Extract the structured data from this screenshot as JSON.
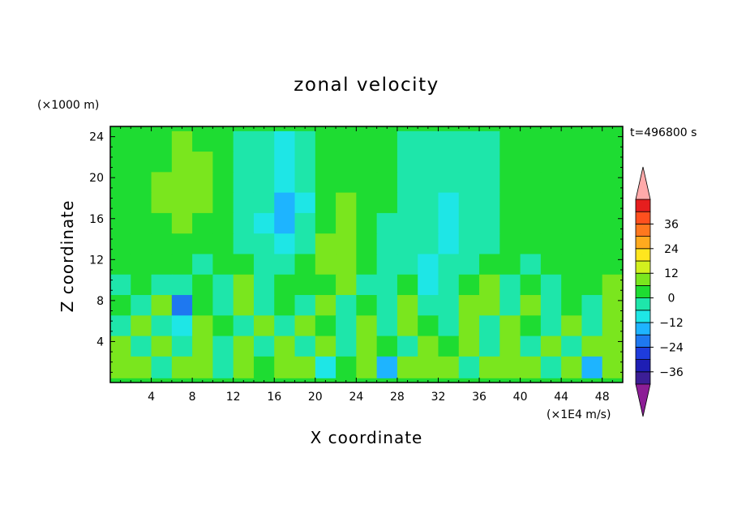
{
  "chart_data": {
    "type": "heatmap",
    "title": "zonal velocity",
    "xlabel": "X coordinate",
    "ylabel": "Z coordinate",
    "x_unit": "(×1E4 m/s)",
    "y_unit": "(×1000 m)",
    "time_label": "t=496800 s",
    "xlim": [
      0,
      50
    ],
    "ylim": [
      0,
      25
    ],
    "x_ticks": [
      4,
      8,
      12,
      16,
      20,
      24,
      28,
      32,
      36,
      40,
      44,
      48
    ],
    "y_ticks": [
      4,
      8,
      12,
      16,
      20,
      24
    ],
    "colorbar": {
      "levels": [
        -42,
        -36,
        -30,
        -24,
        -18,
        -12,
        -6,
        0,
        6,
        12,
        18,
        24,
        30,
        36,
        42
      ],
      "labels": [
        36,
        24,
        12,
        0,
        -12,
        -24,
        -36
      ],
      "colors": [
        "#3c1e96",
        "#1e1eb4",
        "#1e3cdc",
        "#1e78f0",
        "#1eb4ff",
        "#1ee6e6",
        "#1ee6aa",
        "#1edc32",
        "#7ae61e",
        "#d2f01e",
        "#ffe61e",
        "#ffaa1e",
        "#ff781e",
        "#ff501e",
        "#e61e1e"
      ],
      "under_color": "#8c1e96",
      "over_color": "#ffaaaa"
    },
    "field": {
      "x_centers": [
        1,
        3,
        5,
        7,
        9,
        11,
        13,
        15,
        17,
        19,
        21,
        23,
        25,
        27,
        29,
        31,
        33,
        35,
        37,
        39,
        41,
        43,
        45,
        47,
        49
      ],
      "z_centers": [
        23.5,
        21.5,
        19.5,
        17.5,
        15.5,
        13.5,
        11.5,
        9.5,
        7.5,
        5.5,
        3.5,
        1.5
      ],
      "values": [
        [
          2,
          2,
          4,
          6,
          5,
          2,
          -2,
          -6,
          -8,
          -4,
          2,
          4,
          2,
          0,
          -2,
          -4,
          -6,
          -4,
          -2,
          2,
          4,
          4,
          2,
          2,
          4
        ],
        [
          2,
          2,
          4,
          6,
          6,
          2,
          -2,
          -6,
          -8,
          -4,
          2,
          4,
          2,
          0,
          -2,
          -4,
          -6,
          -4,
          -2,
          2,
          4,
          4,
          2,
          2,
          4
        ],
        [
          2,
          2,
          6,
          6,
          6,
          2,
          -2,
          -6,
          -10,
          -6,
          2,
          4,
          2,
          0,
          -2,
          -6,
          -6,
          -4,
          -2,
          2,
          4,
          4,
          2,
          2,
          4
        ],
        [
          2,
          2,
          6,
          6,
          6,
          2,
          -4,
          -6,
          -14,
          -8,
          2,
          6,
          2,
          0,
          -4,
          -6,
          -8,
          -4,
          -2,
          2,
          4,
          4,
          2,
          2,
          4
        ],
        [
          0,
          2,
          4,
          6,
          4,
          0,
          -4,
          -8,
          -16,
          -6,
          4,
          6,
          2,
          -2,
          -4,
          -6,
          -8,
          -6,
          -4,
          2,
          4,
          4,
          2,
          2,
          4
        ],
        [
          0,
          2,
          4,
          4,
          2,
          0,
          -4,
          -6,
          -8,
          -4,
          6,
          8,
          4,
          -2,
          -4,
          -6,
          -8,
          -6,
          -4,
          0,
          2,
          2,
          2,
          2,
          4
        ],
        [
          2,
          0,
          2,
          0,
          -4,
          2,
          2,
          -4,
          -6,
          2,
          8,
          6,
          2,
          -4,
          -6,
          -8,
          -6,
          -4,
          0,
          2,
          -2,
          2,
          0,
          2,
          2
        ],
        [
          -2,
          4,
          -4,
          -6,
          2,
          -2,
          6,
          -6,
          2,
          4,
          2,
          6,
          -4,
          -2,
          4,
          -8,
          -6,
          4,
          6,
          -2,
          4,
          -4,
          2,
          0,
          6
        ],
        [
          4,
          -6,
          6,
          -20,
          4,
          -4,
          8,
          -6,
          4,
          -2,
          6,
          -4,
          2,
          -6,
          6,
          -2,
          -6,
          6,
          8,
          -4,
          6,
          -6,
          4,
          -4,
          8
        ],
        [
          -4,
          6,
          -6,
          -8,
          6,
          4,
          -4,
          8,
          -4,
          6,
          4,
          -6,
          6,
          -4,
          8,
          4,
          -2,
          6,
          -4,
          6,
          4,
          -4,
          6,
          -6,
          6
        ],
        [
          6,
          -4,
          8,
          -6,
          8,
          -4,
          6,
          -2,
          8,
          -4,
          6,
          -6,
          8,
          4,
          -6,
          6,
          2,
          8,
          -4,
          6,
          -2,
          8,
          -4,
          6,
          8
        ],
        [
          8,
          6,
          -4,
          8,
          6,
          -6,
          8,
          4,
          6,
          8,
          -8,
          4,
          8,
          -14,
          6,
          8,
          6,
          -4,
          10,
          8,
          6,
          -4,
          8,
          -14,
          6
        ]
      ]
    }
  }
}
